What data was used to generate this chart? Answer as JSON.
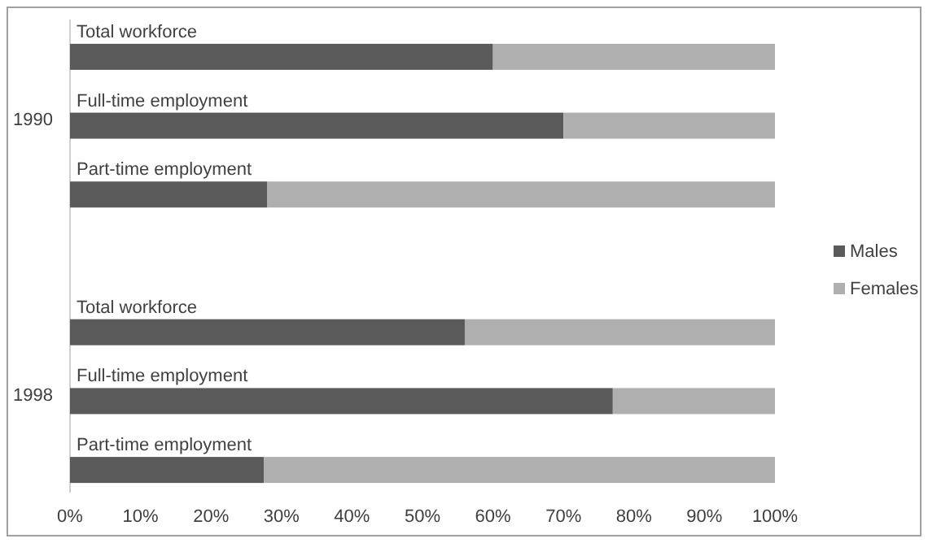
{
  "chart_data": {
    "type": "bar",
    "orientation": "horizontal",
    "stacked": true,
    "categories": [
      "Total workforce",
      "Full-time employment",
      "Part-time employment",
      null,
      "Total workforce",
      "Full-time employment",
      "Part-time employment"
    ],
    "series": [
      {
        "name": "Males",
        "color": "#5a5a5a",
        "values": [
          60,
          70,
          28,
          null,
          56,
          77,
          27.5
        ]
      },
      {
        "name": "Females",
        "color": "#afafaf",
        "values": [
          40,
          30,
          72,
          null,
          44,
          23,
          72.5
        ]
      }
    ],
    "xlim": [
      0,
      100
    ],
    "xticks": [
      {
        "value": 0,
        "label": "0%"
      },
      {
        "value": 10,
        "label": "10%"
      },
      {
        "value": 20,
        "label": "20%"
      },
      {
        "value": 30,
        "label": "30%"
      },
      {
        "value": 40,
        "label": "40%"
      },
      {
        "value": 50,
        "label": "50%"
      },
      {
        "value": 60,
        "label": "60%"
      },
      {
        "value": 70,
        "label": "70%"
      },
      {
        "value": 80,
        "label": "80%"
      },
      {
        "value": 90,
        "label": "90%"
      },
      {
        "value": 100,
        "label": "100%"
      }
    ],
    "annotations": [
      "1990",
      "1998"
    ],
    "legend": "right"
  }
}
